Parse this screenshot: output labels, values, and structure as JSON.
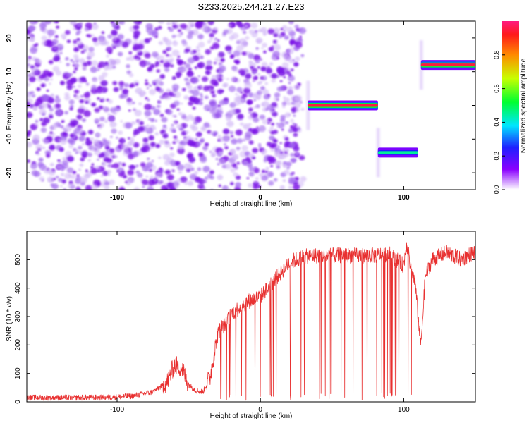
{
  "title": "S233.2025.244.21.27.E23",
  "chart_data": [
    {
      "type": "heatmap",
      "xlabel": "Height of straight line (km)",
      "ylabel": "Frequency (Hz)",
      "xlim": [
        -163,
        150
      ],
      "ylim": [
        -25,
        25
      ],
      "xticks": [
        -100,
        0,
        100
      ],
      "yticks": [
        -20,
        -10,
        0,
        10,
        20
      ],
      "background_speckle_x_range": [
        -163,
        30
      ],
      "tones": [
        {
          "x_start": 33,
          "x_end": 82,
          "freq": 0,
          "amplitude": 0.95
        },
        {
          "x_start": 82,
          "x_end": 110,
          "freq": -14,
          "amplitude": 0.45
        },
        {
          "x_start": 112,
          "x_end": 150,
          "freq": 12,
          "amplitude": 0.95
        }
      ],
      "colorbar": {
        "label": "Normalized spectral amplitude",
        "range": [
          0,
          1
        ],
        "ticks": [
          "0.0",
          "0.2",
          "0.4",
          "0.6",
          "0.8"
        ]
      }
    },
    {
      "type": "line",
      "xlabel": "Height of straight line (km)",
      "ylabel": "SNR (10 * v/v)",
      "xlim": [
        -163,
        150
      ],
      "ylim": [
        0,
        600
      ],
      "xticks": [
        -100,
        0,
        100
      ],
      "yticks": [
        0,
        100,
        200,
        300,
        400,
        500
      ],
      "series": [
        {
          "name": "SNR",
          "color": "#e83030",
          "x": [
            -163,
            -110,
            -90,
            -75,
            -65,
            -60,
            -55,
            -50,
            -45,
            -40,
            -35,
            -32,
            -30,
            -28,
            -25,
            -20,
            -15,
            -10,
            -5,
            0,
            5,
            10,
            15,
            20,
            25,
            30,
            40,
            50,
            60,
            70,
            80,
            90,
            95,
            100,
            102,
            105,
            108,
            110,
            112,
            115,
            120,
            130,
            140,
            150
          ],
          "values": [
            15,
            15,
            20,
            35,
            70,
            130,
            120,
            60,
            40,
            35,
            90,
            180,
            230,
            260,
            270,
            310,
            330,
            350,
            360,
            370,
            400,
            430,
            460,
            490,
            500,
            510,
            515,
            515,
            515,
            515,
            515,
            520,
            500,
            480,
            560,
            470,
            420,
            300,
            200,
            440,
            500,
            525,
            500,
            530
          ]
        }
      ]
    }
  ]
}
